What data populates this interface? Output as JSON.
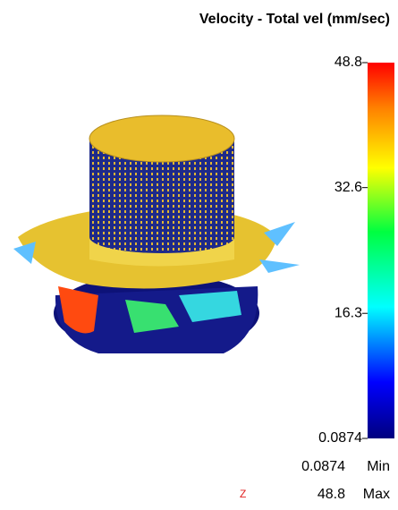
{
  "title": "Velocity - Total vel (mm/sec)",
  "colorbar": {
    "lim": [
      0.0874,
      48.8
    ],
    "ticks": [
      48.8,
      32.6,
      16.3,
      0.0874
    ]
  },
  "range": {
    "min_value": 0.0874,
    "min_label": "Min",
    "max_value": 48.8,
    "max_label": "Max"
  },
  "axis_label": "Z"
}
